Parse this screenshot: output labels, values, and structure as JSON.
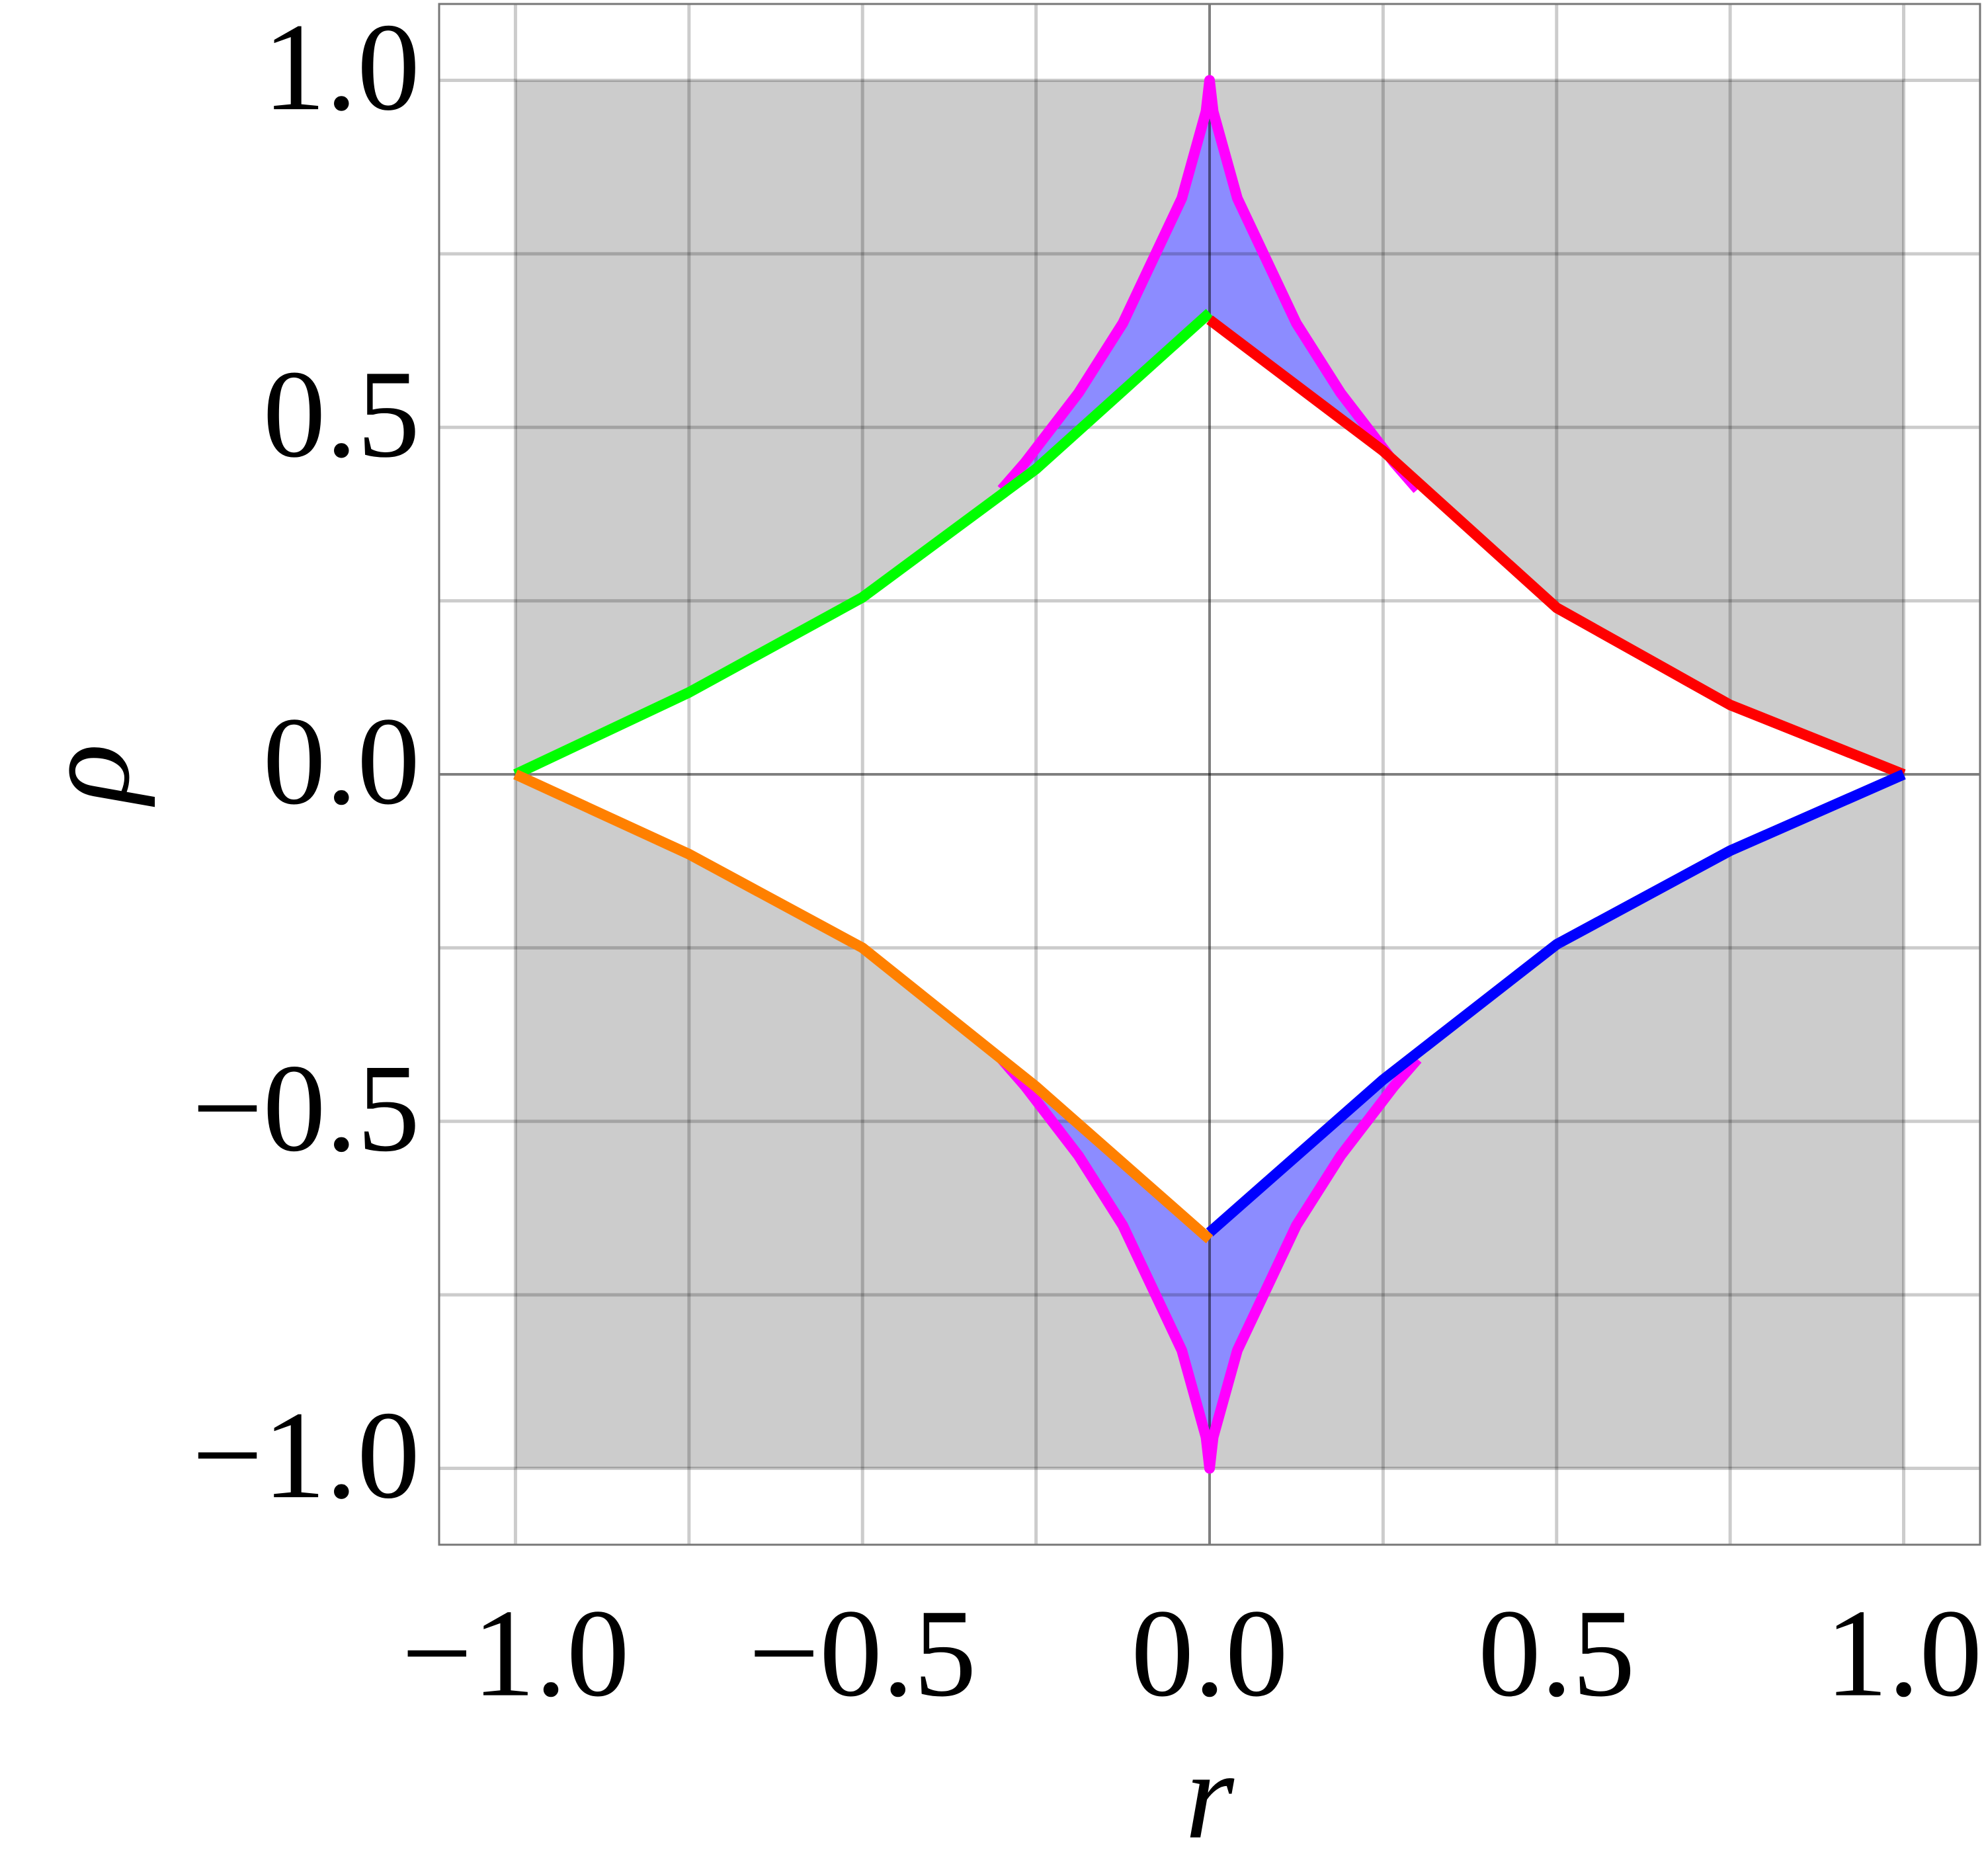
{
  "chart_data": {
    "type": "line",
    "x_label": "r",
    "y_label": "ρ",
    "xlim": [
      -1.11,
      1.11
    ],
    "ylim": [
      -1.11,
      1.11
    ],
    "xticks": [
      {
        "value": -1,
        "label": "−1.0"
      },
      {
        "value": -0.5,
        "label": "−0.5"
      },
      {
        "value": 0,
        "label": "0.0"
      },
      0.5,
      {
        "value": 1,
        "label": "1.0"
      }
    ],
    "yticks": [
      {
        "value": -1,
        "label": "−1.0"
      },
      {
        "value": -0.5,
        "label": "−0.5"
      },
      {
        "value": 0,
        "label": "0.0"
      },
      0.5,
      {
        "value": 1,
        "label": "1.0"
      }
    ],
    "x_minor_grid": [
      -0.75,
      -0.25,
      0.25,
      0.75
    ],
    "y_minor_grid": [
      -0.75,
      -0.25,
      0.25,
      0.75
    ],
    "grid": true,
    "fills": [
      {
        "color": "#cccccc",
        "x": [
          -1,
          1,
          1,
          -1
        ],
        "y": [
          1,
          1,
          -1,
          -1
        ]
      },
      {
        "color": "#ffffff",
        "x": [
          -1,
          -0.75,
          -0.5,
          -0.25,
          0,
          0,
          0.25,
          0.5,
          0.75,
          1,
          0.75,
          0.5,
          0.25,
          0,
          0,
          -0.25,
          -0.5,
          -0.75
        ],
        "y": [
          0,
          0.118,
          0.255,
          0.44,
          0.665,
          0.655,
          0.466,
          0.24,
          0.1,
          0,
          -0.11,
          -0.245,
          -0.44,
          -0.66,
          -0.67,
          -0.45,
          -0.25,
          -0.115
        ]
      },
      {
        "color": "#8c8cff",
        "x": [
          -0.2996,
          -0.2656,
          -0.1887,
          -0.125,
          -0.04,
          -0.0052,
          0,
          0.0052,
          0.04,
          0.125,
          0.1887,
          0.2656,
          0.2996,
          0.25,
          0,
          0,
          -0.25
        ],
        "y": [
          0.4104,
          0.4495,
          0.5497,
          0.65,
          0.83,
          0.955,
          1,
          0.955,
          0.83,
          0.65,
          0.5497,
          0.4495,
          0.4104,
          0.466,
          0.655,
          0.665,
          0.44
        ]
      },
      {
        "color": "#8c8cff",
        "x": [
          -0.2996,
          -0.2656,
          -0.1887,
          -0.125,
          -0.04,
          -0.0052,
          0,
          0.0052,
          0.04,
          0.125,
          0.1887,
          0.2656,
          0.2996,
          0.25,
          0,
          0,
          -0.25
        ],
        "y": [
          -0.4104,
          -0.4495,
          -0.5497,
          -0.65,
          -0.83,
          -0.955,
          -1,
          -0.955,
          -0.83,
          -0.65,
          -0.5497,
          -0.4495,
          -0.4104,
          -0.44,
          -0.66,
          -0.67,
          -0.45
        ]
      }
    ],
    "series": [
      {
        "color": "#ff00ff",
        "x": [
          -0.2996,
          -0.2656,
          -0.1887,
          -0.125,
          -0.04,
          -0.0052,
          0,
          0.0052,
          0.04,
          0.125,
          0.1887,
          0.2656,
          0.2996,
          null,
          -0.2996,
          -0.2656,
          -0.1887,
          -0.125,
          -0.04,
          -0.0052,
          0,
          0.0052,
          0.04,
          0.125,
          0.1887,
          0.2656,
          0.2996
        ],
        "y": [
          0.4104,
          0.4495,
          0.5497,
          0.65,
          0.83,
          0.955,
          1,
          0.955,
          0.83,
          0.65,
          0.5497,
          0.4495,
          0.4104,
          null,
          -0.4104,
          -0.4495,
          -0.5497,
          -0.65,
          -0.83,
          -0.955,
          -1,
          -0.955,
          -0.83,
          -0.65,
          -0.5497,
          -0.4495,
          -0.4104
        ]
      },
      {
        "color": "#00ff00",
        "x": [
          -1,
          -0.75,
          -0.5,
          -0.25,
          0
        ],
        "y": [
          0,
          0.118,
          0.255,
          0.44,
          0.665
        ]
      },
      {
        "color": "#ff0000",
        "x": [
          0,
          0.25,
          0.5,
          0.75,
          1
        ],
        "y": [
          0.655,
          0.466,
          0.24,
          0.1,
          0
        ]
      },
      {
        "color": "#0000ff",
        "x": [
          0,
          0.25,
          0.5,
          0.75,
          1
        ],
        "y": [
          -0.66,
          -0.44,
          -0.245,
          -0.11,
          0
        ]
      },
      {
        "color": "#ff8000",
        "x": [
          -1,
          -0.75,
          -0.5,
          -0.25,
          0
        ],
        "y": [
          0,
          -0.115,
          -0.25,
          -0.45,
          -0.67
        ]
      }
    ]
  }
}
